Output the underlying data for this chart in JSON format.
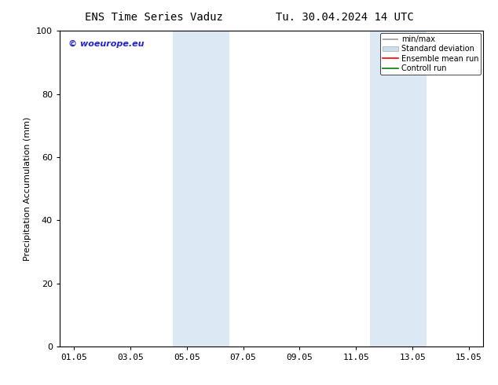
{
  "title_left": "ENS Time Series Vaduz",
  "title_right": "Tu. 30.04.2024 14 UTC",
  "ylabel": "Precipitation Accumulation (mm)",
  "ylim": [
    0,
    100
  ],
  "yticks": [
    0,
    20,
    40,
    60,
    80,
    100
  ],
  "xtick_labels": [
    "01.05",
    "03.05",
    "05.05",
    "07.05",
    "09.05",
    "11.05",
    "13.05",
    "15.05"
  ],
  "xtick_positions": [
    0,
    2,
    4,
    6,
    8,
    10,
    12,
    14
  ],
  "xmin": -0.5,
  "xmax": 14.5,
  "shaded_bands": [
    {
      "xmin": 3.5,
      "xmax": 5.5,
      "color": "#dce9f5"
    },
    {
      "xmin": 10.5,
      "xmax": 12.5,
      "color": "#dce9f5"
    }
  ],
  "watermark_text": "© woeurope.eu",
  "watermark_color": "#2222cc",
  "legend_labels": [
    "min/max",
    "Standard deviation",
    "Ensemble mean run",
    "Controll run"
  ],
  "legend_colors_line": [
    "#999999",
    "#ccddee",
    "#ff0000",
    "#008000"
  ],
  "background_color": "#ffffff",
  "plot_bg_color": "#ffffff",
  "title_fontsize": 10,
  "label_fontsize": 8,
  "tick_fontsize": 8,
  "legend_fontsize": 7,
  "watermark_fontsize": 8
}
